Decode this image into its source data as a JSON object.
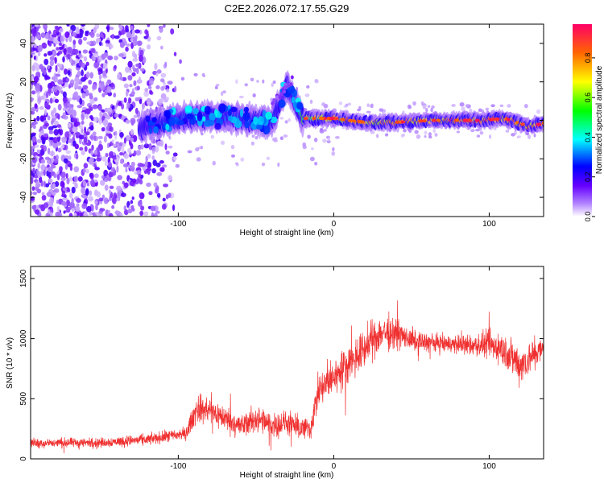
{
  "title": "C2E2.2026.072.17.55.G29",
  "chart_data": [
    {
      "type": "heatmap",
      "name": "spectrogram",
      "xlabel": "Height of straight line (km)",
      "ylabel": "Frequency (Hz)",
      "xlim": [
        -195,
        135
      ],
      "ylim": [
        -50,
        50
      ],
      "xticks": [
        -100,
        0,
        100
      ],
      "xtick_labels": [
        "-100",
        "0",
        "100"
      ],
      "yticks": [
        -40,
        -20,
        0,
        20,
        40
      ],
      "ytick_labels": [
        "-40",
        "-20",
        "0",
        "20",
        "40"
      ],
      "noise_region_km": [
        -195,
        -97
      ],
      "signal_onset_km": -125,
      "ridge_frequency_hz": 0,
      "ridge_points": [
        {
          "x": -120,
          "y": -3,
          "amp": 0.25
        },
        {
          "x": -100,
          "y": 1,
          "amp": 0.3
        },
        {
          "x": -80,
          "y": 2,
          "amp": 0.32
        },
        {
          "x": -60,
          "y": 1,
          "amp": 0.35
        },
        {
          "x": -40,
          "y": -1,
          "amp": 0.35
        },
        {
          "x": -30,
          "y": 18,
          "amp": 0.1
        },
        {
          "x": -20,
          "y": 1,
          "amp": 0.6
        },
        {
          "x": 0,
          "y": 1,
          "amp": 0.85
        },
        {
          "x": 20,
          "y": -1,
          "amp": 0.8
        },
        {
          "x": 40,
          "y": -1,
          "amp": 0.85
        },
        {
          "x": 65,
          "y": 0,
          "amp": 0.9
        },
        {
          "x": 95,
          "y": 0,
          "amp": 0.95
        },
        {
          "x": 110,
          "y": 1,
          "amp": 0.9
        },
        {
          "x": 125,
          "y": -3,
          "amp": 0.9
        },
        {
          "x": 133,
          "y": -2,
          "amp": 0.95
        }
      ],
      "colorbar": {
        "label": "Normalized spectral amplitude",
        "range": [
          0,
          0.97
        ],
        "ticks": [
          0.0,
          0.2,
          0.4,
          0.6,
          0.8
        ],
        "tick_labels": [
          "0.0",
          "0.2",
          "0.4",
          "0.6",
          "0.8"
        ],
        "colormap": [
          "#ffffff",
          "#6600ff",
          "#0000ff",
          "#00ffff",
          "#00ff00",
          "#ffff00",
          "#ff0000",
          "#ff0066"
        ]
      }
    },
    {
      "type": "line",
      "name": "snr",
      "xlabel": "Height of straight line (km)",
      "ylabel": "SNR (10 * v/v)",
      "xlim": [
        -195,
        135
      ],
      "ylim": [
        0,
        1600
      ],
      "xticks": [
        -100,
        0,
        100
      ],
      "xtick_labels": [
        "-100",
        "0",
        "100"
      ],
      "yticks": [
        0,
        500,
        1000,
        1500
      ],
      "ytick_labels": [
        "0",
        "500",
        "1000",
        "1500"
      ],
      "color": "#f03030",
      "envelope": {
        "x": [
          -195,
          -150,
          -120,
          -95,
          -88,
          -80,
          -70,
          -60,
          -50,
          -40,
          -30,
          -25,
          -15,
          -10,
          0,
          10,
          20,
          30,
          40,
          50,
          70,
          90,
          100,
          110,
          120,
          135
        ],
        "mean": [
          130,
          135,
          160,
          210,
          420,
          400,
          340,
          270,
          330,
          280,
          300,
          260,
          250,
          550,
          680,
          800,
          920,
          1050,
          1050,
          980,
          960,
          940,
          950,
          900,
          780,
          920
        ],
        "spread": [
          60,
          60,
          70,
          80,
          180,
          170,
          160,
          150,
          170,
          160,
          150,
          150,
          140,
          220,
          220,
          230,
          240,
          230,
          180,
          130,
          110,
          130,
          180,
          220,
          240,
          160
        ]
      }
    }
  ]
}
